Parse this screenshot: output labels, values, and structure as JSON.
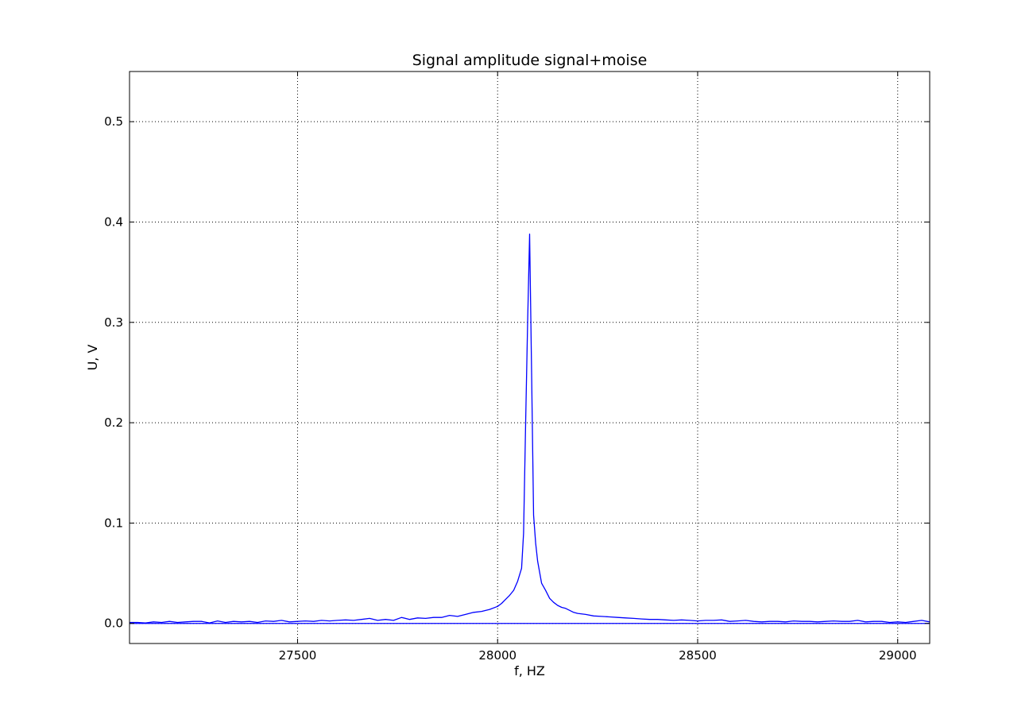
{
  "chart_data": {
    "type": "line",
    "title": "Signal amplitude signal+moise",
    "xlabel": "f, HZ",
    "ylabel": "U, V",
    "xlim": [
      27080,
      29080
    ],
    "ylim": [
      -0.02,
      0.55
    ],
    "xticks": [
      27500,
      28000,
      28500,
      29000
    ],
    "xtick_labels": [
      "27500",
      "28000",
      "28500",
      "29000"
    ],
    "yticks": [
      0.0,
      0.1,
      0.2,
      0.3,
      0.4,
      0.5
    ],
    "ytick_labels": [
      "0.0",
      "0.1",
      "0.2",
      "0.3",
      "0.4",
      "0.5"
    ],
    "grid": true,
    "line_color": "#0000ff",
    "baseline": 0.0,
    "series": [
      {
        "x": [
          27080,
          27100,
          27120,
          27140,
          27160,
          27180,
          27200,
          27220,
          27240,
          27260,
          27280,
          27300,
          27320,
          27340,
          27360,
          27380,
          27400,
          27420,
          27440,
          27460,
          27480,
          27500,
          27520,
          27540,
          27560,
          27580,
          27600,
          27620,
          27640,
          27660,
          27680,
          27700,
          27720,
          27740,
          27760,
          27780,
          27800,
          27820,
          27840,
          27860,
          27880,
          27900,
          27920,
          27940,
          27960,
          27980,
          28000,
          28010,
          28020,
          28030,
          28040,
          28050,
          28060,
          28065,
          28070,
          28075,
          28080,
          28085,
          28090,
          28095,
          28100,
          28110,
          28120,
          28130,
          28140,
          28150,
          28160,
          28170,
          28180,
          28190,
          28200,
          28220,
          28240,
          28260,
          28280,
          28300,
          28320,
          28340,
          28360,
          28380,
          28400,
          28420,
          28440,
          28460,
          28480,
          28500,
          28520,
          28540,
          28560,
          28580,
          28600,
          28620,
          28640,
          28660,
          28680,
          28700,
          28720,
          28740,
          28760,
          28780,
          28800,
          28820,
          28840,
          28860,
          28880,
          28900,
          28920,
          28940,
          28960,
          28980,
          29000,
          29020,
          29040,
          29060,
          29080
        ],
        "values": [
          0.001,
          0.001,
          0.0005,
          0.0015,
          0.001,
          0.002,
          0.001,
          0.0015,
          0.002,
          0.002,
          0.0005,
          0.0025,
          0.001,
          0.002,
          0.0015,
          0.002,
          0.001,
          0.0025,
          0.002,
          0.003,
          0.0015,
          0.002,
          0.0025,
          0.002,
          0.003,
          0.0025,
          0.003,
          0.0035,
          0.003,
          0.004,
          0.005,
          0.003,
          0.004,
          0.003,
          0.006,
          0.004,
          0.0055,
          0.005,
          0.006,
          0.006,
          0.008,
          0.007,
          0.009,
          0.011,
          0.012,
          0.014,
          0.017,
          0.02,
          0.024,
          0.028,
          0.033,
          0.042,
          0.055,
          0.09,
          0.2,
          0.3,
          0.388,
          0.25,
          0.108,
          0.08,
          0.062,
          0.04,
          0.033,
          0.025,
          0.021,
          0.018,
          0.016,
          0.015,
          0.013,
          0.011,
          0.01,
          0.009,
          0.0075,
          0.007,
          0.0065,
          0.006,
          0.0055,
          0.005,
          0.0045,
          0.004,
          0.004,
          0.0035,
          0.003,
          0.0035,
          0.003,
          0.0025,
          0.003,
          0.003,
          0.0035,
          0.002,
          0.0025,
          0.003,
          0.002,
          0.0015,
          0.002,
          0.002,
          0.0015,
          0.0025,
          0.002,
          0.002,
          0.0015,
          0.002,
          0.0025,
          0.002,
          0.002,
          0.003,
          0.0015,
          0.002,
          0.002,
          0.001,
          0.0015,
          0.001,
          0.002,
          0.003,
          0.0015
        ]
      }
    ]
  }
}
